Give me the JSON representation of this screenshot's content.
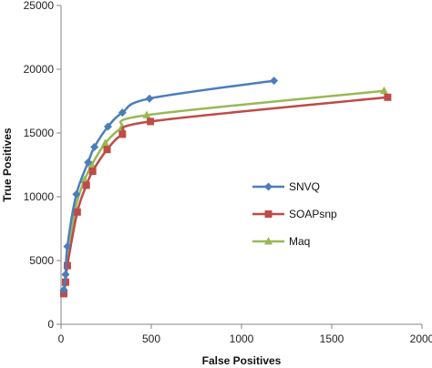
{
  "chart_data": {
    "type": "line",
    "xlabel": "False Positives",
    "ylabel": "True Positives",
    "xlim": [
      0,
      2000
    ],
    "ylim": [
      0,
      25000
    ],
    "xticks": [
      "0",
      "500",
      "1000",
      "1500",
      "2000"
    ],
    "yticks": [
      "0",
      "5000",
      "10000",
      "15000",
      "20000",
      "25000"
    ],
    "grid": false,
    "legend": "right-center",
    "series": [
      {
        "name": "SNVQ",
        "color": "#4a7ebb",
        "marker": "diamond",
        "points": [
          [
            15,
            2700
          ],
          [
            25,
            3900
          ],
          [
            35,
            6100
          ],
          [
            85,
            10200
          ],
          [
            150,
            12700
          ],
          [
            185,
            13900
          ],
          [
            260,
            15500
          ],
          [
            340,
            16600
          ],
          [
            490,
            17700
          ],
          [
            1180,
            19100
          ]
        ]
      },
      {
        "name": "SOAPsnp",
        "color": "#be4b48",
        "marker": "square",
        "points": [
          [
            15,
            2400
          ],
          [
            25,
            3300
          ],
          [
            35,
            4600
          ],
          [
            90,
            8800
          ],
          [
            140,
            10900
          ],
          [
            175,
            12000
          ],
          [
            255,
            13700
          ],
          [
            340,
            14900
          ],
          [
            495,
            15900
          ],
          [
            1810,
            17800
          ]
        ]
      },
      {
        "name": "Maq",
        "color": "#98b954",
        "marker": "triangle",
        "points": [
          [
            15,
            2600
          ],
          [
            25,
            3500
          ],
          [
            35,
            4700
          ],
          [
            80,
            9100
          ],
          [
            130,
            11300
          ],
          [
            170,
            12500
          ],
          [
            245,
            14200
          ],
          [
            335,
            15400
          ],
          [
            475,
            16400
          ],
          [
            1790,
            18300
          ]
        ]
      }
    ]
  }
}
